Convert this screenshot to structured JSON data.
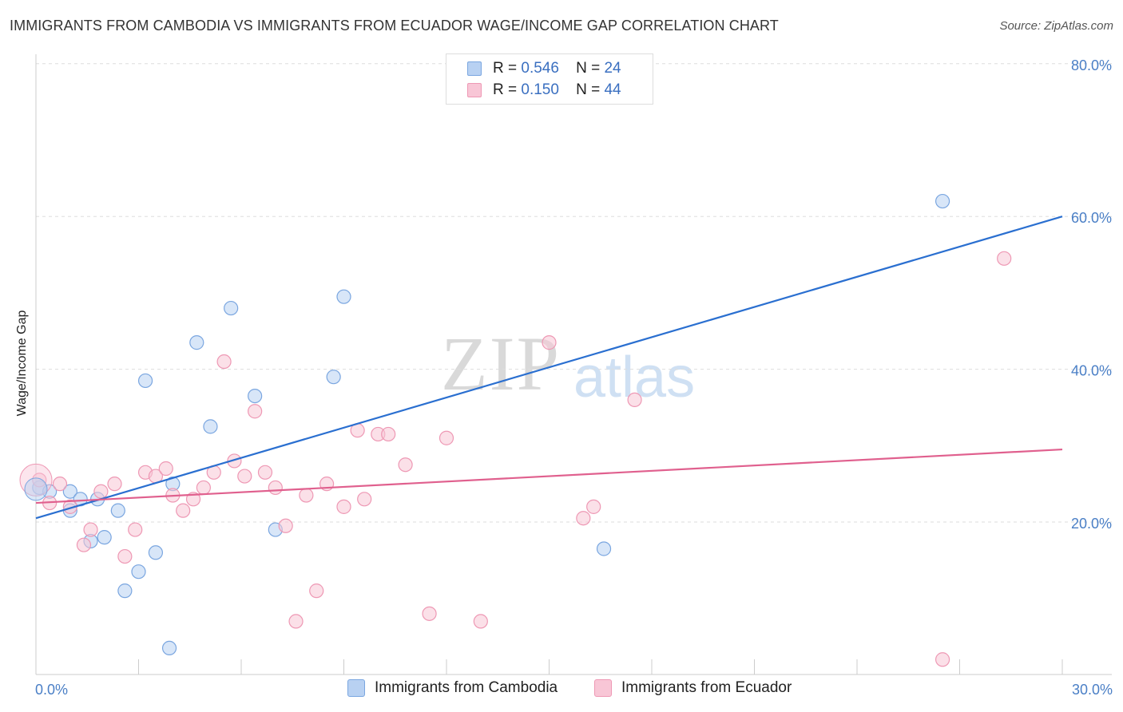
{
  "title": "IMMIGRANTS FROM CAMBODIA VS IMMIGRANTS FROM ECUADOR WAGE/INCOME GAP CORRELATION CHART",
  "source": "Source: ZipAtlas.com",
  "watermark": {
    "zip": "ZIP",
    "atlas": "atlas"
  },
  "legend": {
    "series": [
      {
        "r_label": "R =",
        "r_value": "0.546",
        "n_label": "N =",
        "n_value": "24"
      },
      {
        "r_label": "R =",
        "r_value": "0.150",
        "n_label": "N =",
        "n_value": "44"
      }
    ]
  },
  "bottom_legend": [
    "Immigrants from Cambodia",
    "Immigrants from Ecuador"
  ],
  "colors": {
    "blue_fill": "#b8d1f2",
    "blue_stroke": "#7aa6e0",
    "blue_line": "#2a6fd0",
    "pink_fill": "#f8c6d6",
    "pink_stroke": "#ee98b4",
    "pink_line": "#e0608e",
    "grid": "#dddddd",
    "tick_text": "#4a7fc6"
  },
  "chart_data": {
    "type": "scatter",
    "title": "IMMIGRANTS FROM CAMBODIA VS IMMIGRANTS FROM ECUADOR WAGE/INCOME GAP CORRELATION CHART",
    "xlabel": "",
    "ylabel": "Wage/Income Gap",
    "xlim": [
      0,
      30
    ],
    "ylim": [
      0,
      80
    ],
    "x_tick_labels": [
      "0.0%",
      "30.0%"
    ],
    "y_ticks": [
      20,
      40,
      60,
      80
    ],
    "y_tick_labels": [
      "20.0%",
      "40.0%",
      "60.0%",
      "80.0%"
    ],
    "series": [
      {
        "name": "Immigrants from Cambodia",
        "points": [
          [
            0.1,
            24.5
          ],
          [
            0.4,
            24.0
          ],
          [
            1.0,
            24.0
          ],
          [
            1.0,
            21.5
          ],
          [
            1.3,
            23.0
          ],
          [
            1.6,
            17.5
          ],
          [
            1.8,
            23.0
          ],
          [
            2.0,
            18.0
          ],
          [
            2.4,
            21.5
          ],
          [
            2.6,
            11.0
          ],
          [
            3.0,
            13.5
          ],
          [
            3.2,
            38.5
          ],
          [
            3.5,
            16.0
          ],
          [
            3.9,
            3.5
          ],
          [
            4.0,
            25.0
          ],
          [
            4.7,
            43.5
          ],
          [
            5.1,
            32.5
          ],
          [
            5.7,
            48.0
          ],
          [
            6.4,
            36.5
          ],
          [
            7.0,
            19.0
          ],
          [
            8.7,
            39.0
          ],
          [
            9.0,
            49.5
          ],
          [
            16.6,
            16.5
          ],
          [
            26.5,
            62.0
          ]
        ],
        "trend": {
          "x": [
            0,
            30
          ],
          "y": [
            20.5,
            60.0
          ]
        }
      },
      {
        "name": "Immigrants from Ecuador",
        "points": [
          [
            0.1,
            25.5
          ],
          [
            0.4,
            22.5
          ],
          [
            0.7,
            25.0
          ],
          [
            1.0,
            22.0
          ],
          [
            1.4,
            17.0
          ],
          [
            1.6,
            19.0
          ],
          [
            1.9,
            24.0
          ],
          [
            2.3,
            25.0
          ],
          [
            2.6,
            15.5
          ],
          [
            2.9,
            19.0
          ],
          [
            3.2,
            26.5
          ],
          [
            3.5,
            26.0
          ],
          [
            3.8,
            27.0
          ],
          [
            4.0,
            23.5
          ],
          [
            4.3,
            21.5
          ],
          [
            4.6,
            23.0
          ],
          [
            4.9,
            24.5
          ],
          [
            5.2,
            26.5
          ],
          [
            5.5,
            41.0
          ],
          [
            5.8,
            28.0
          ],
          [
            6.1,
            26.0
          ],
          [
            6.4,
            34.5
          ],
          [
            6.7,
            26.5
          ],
          [
            7.0,
            24.5
          ],
          [
            7.3,
            19.5
          ],
          [
            7.6,
            7.0
          ],
          [
            7.9,
            23.5
          ],
          [
            8.2,
            11.0
          ],
          [
            8.5,
            25.0
          ],
          [
            9.0,
            22.0
          ],
          [
            9.4,
            32.0
          ],
          [
            9.6,
            23.0
          ],
          [
            10.0,
            31.5
          ],
          [
            10.3,
            31.5
          ],
          [
            10.8,
            27.5
          ],
          [
            11.5,
            8.0
          ],
          [
            12.0,
            31.0
          ],
          [
            13.0,
            7.0
          ],
          [
            15.0,
            43.5
          ],
          [
            16.0,
            20.5
          ],
          [
            16.3,
            22.0
          ],
          [
            17.5,
            36.0
          ],
          [
            26.5,
            2.0
          ],
          [
            28.3,
            54.5
          ]
        ],
        "trend": {
          "x": [
            0,
            30
          ],
          "y": [
            22.5,
            29.5
          ]
        }
      }
    ]
  }
}
